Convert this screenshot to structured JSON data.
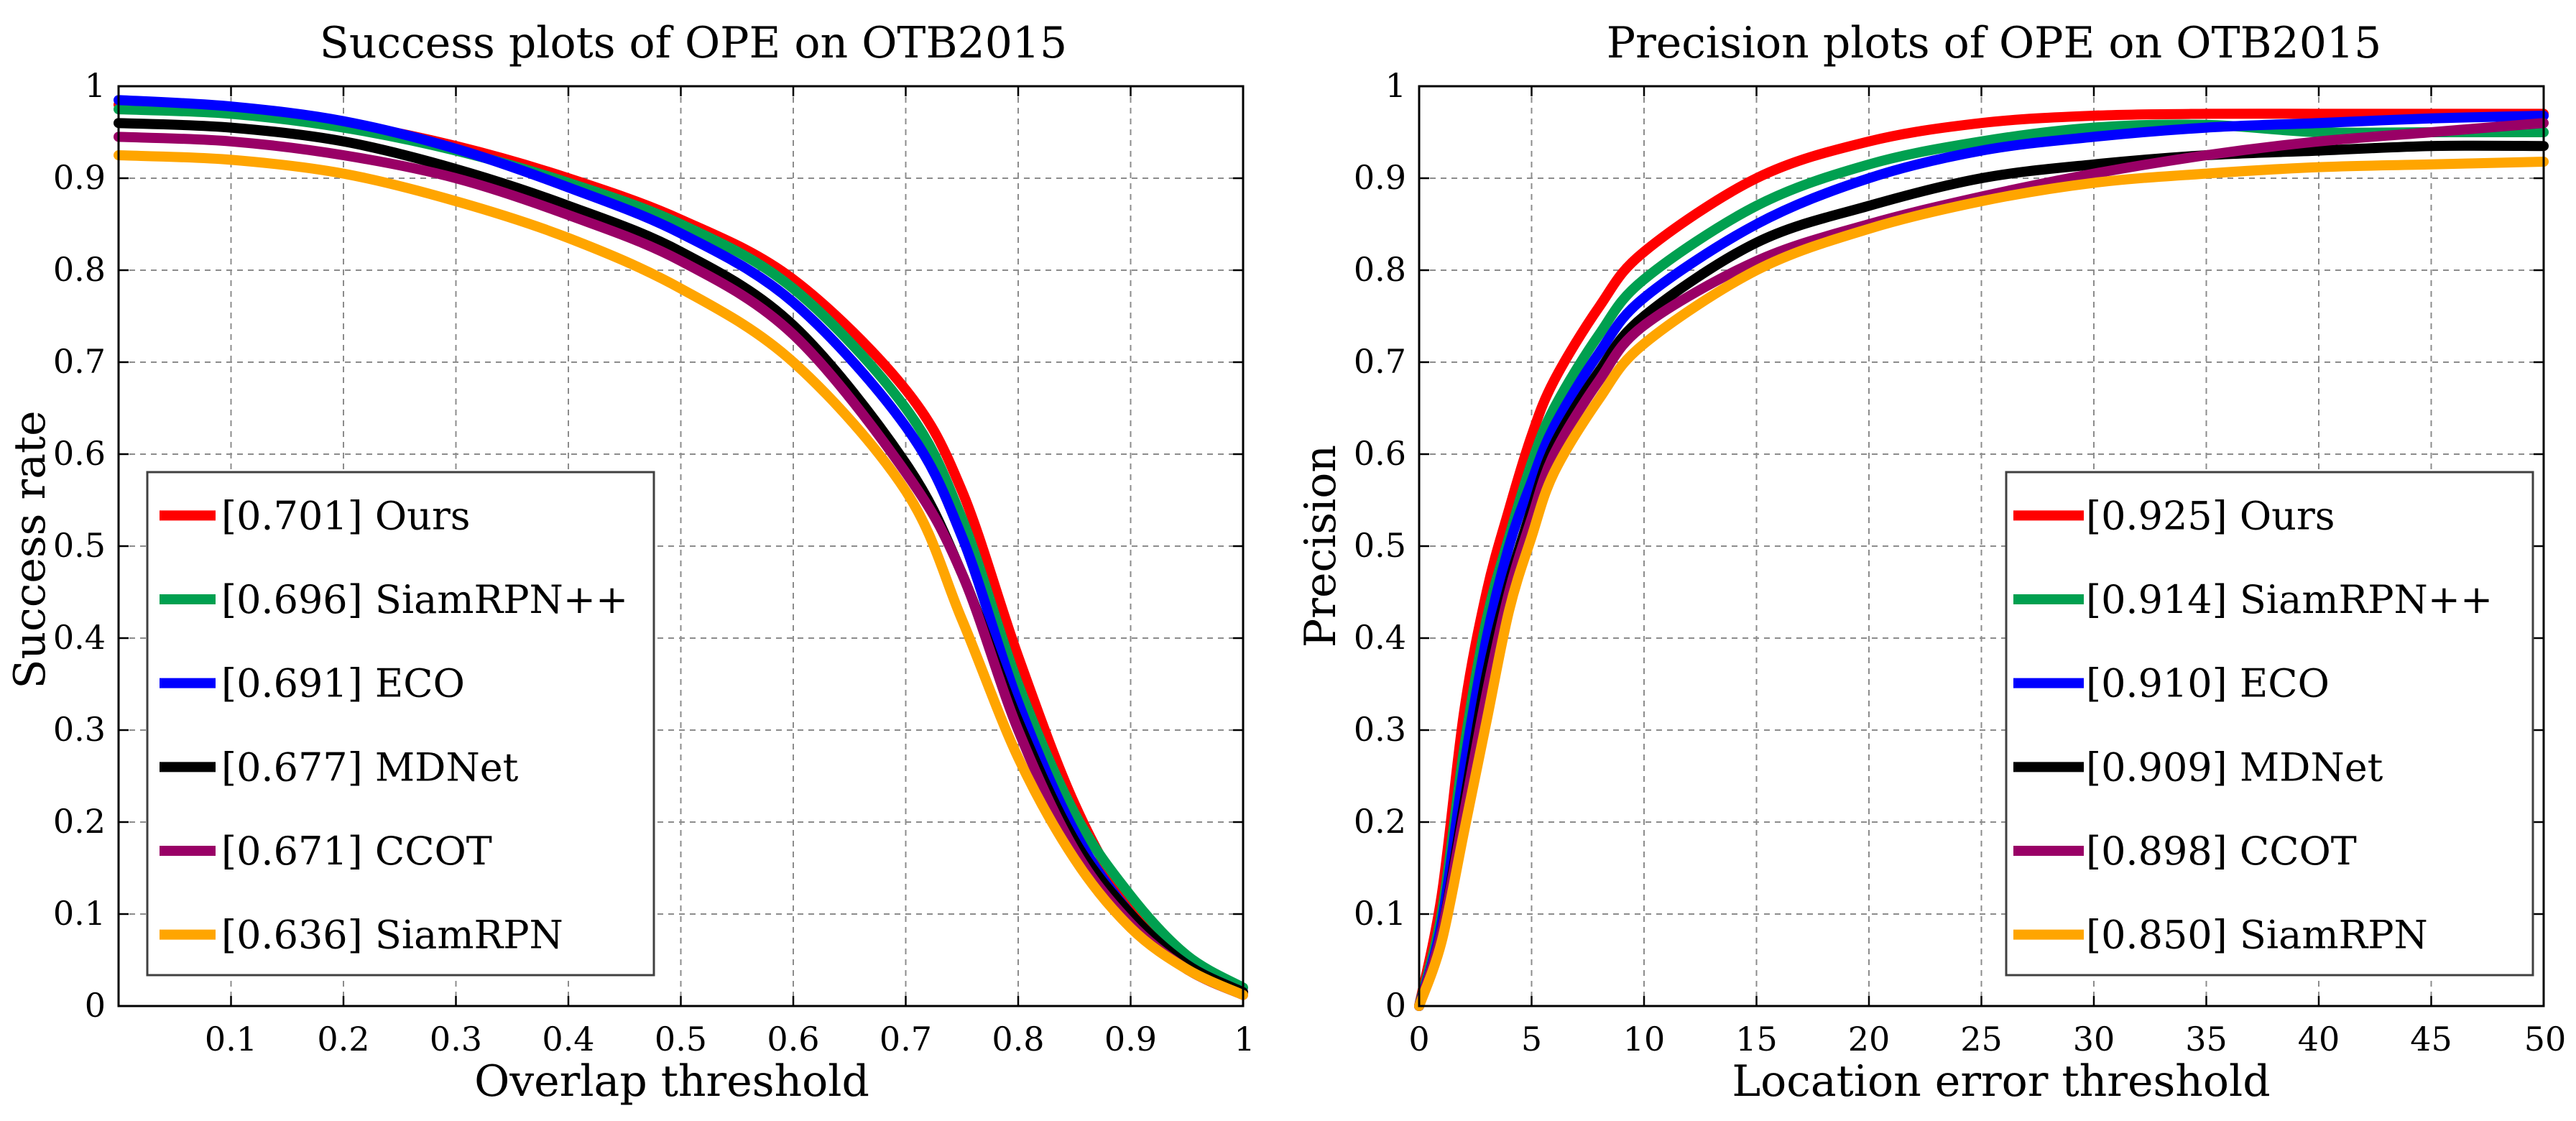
{
  "chart_data": [
    {
      "type": "line",
      "title": "Success plots of OPE on OTB2015",
      "xlabel": "Overlap threshold",
      "ylabel": "Success rate",
      "xlim": [
        0,
        1
      ],
      "ylim": [
        0,
        1
      ],
      "xticks": [
        "0.1",
        "0.2",
        "0.3",
        "0.4",
        "0.5",
        "0.6",
        "0.7",
        "0.8",
        "0.9",
        "1"
      ],
      "yticks": [
        "0",
        "0.1",
        "0.2",
        "0.3",
        "0.4",
        "0.5",
        "0.6",
        "0.7",
        "0.8",
        "0.9",
        "1"
      ],
      "grid": true,
      "legend_position": "bottom-left",
      "x": [
        0,
        0.1,
        0.2,
        0.3,
        0.4,
        0.5,
        0.6,
        0.7,
        0.75,
        0.8,
        0.85,
        0.9,
        0.95,
        1.0
      ],
      "series": [
        {
          "name": "Ours",
          "legend": "[0.701] Ours",
          "color": "#ff0000",
          "values": [
            0.98,
            0.975,
            0.96,
            0.935,
            0.9,
            0.855,
            0.79,
            0.67,
            0.56,
            0.38,
            0.22,
            0.11,
            0.05,
            0.015
          ]
        },
        {
          "name": "SiamRPN++",
          "legend": "[0.696] SiamRPN++",
          "color": "#00a050",
          "values": [
            0.975,
            0.97,
            0.955,
            0.93,
            0.895,
            0.85,
            0.78,
            0.65,
            0.53,
            0.35,
            0.21,
            0.12,
            0.055,
            0.02
          ]
        },
        {
          "name": "ECO",
          "legend": "[0.691] ECO",
          "color": "#0000ff",
          "values": [
            0.985,
            0.978,
            0.962,
            0.932,
            0.89,
            0.84,
            0.765,
            0.63,
            0.51,
            0.33,
            0.19,
            0.1,
            0.045,
            0.015
          ]
        },
        {
          "name": "MDNet",
          "legend": "[0.677] MDNet",
          "color": "#000000",
          "values": [
            0.96,
            0.955,
            0.94,
            0.91,
            0.87,
            0.82,
            0.74,
            0.59,
            0.47,
            0.31,
            0.18,
            0.1,
            0.045,
            0.015
          ]
        },
        {
          "name": "CCOT",
          "legend": "[0.671] CCOT",
          "color": "#990066",
          "values": [
            0.945,
            0.94,
            0.925,
            0.9,
            0.86,
            0.81,
            0.73,
            0.58,
            0.47,
            0.3,
            0.17,
            0.09,
            0.04,
            0.012
          ]
        },
        {
          "name": "SiamRPN",
          "legend": "[0.636] SiamRPN",
          "color": "#ffa500",
          "values": [
            0.925,
            0.92,
            0.905,
            0.875,
            0.835,
            0.78,
            0.7,
            0.56,
            0.42,
            0.27,
            0.16,
            0.085,
            0.04,
            0.012
          ]
        }
      ]
    },
    {
      "type": "line",
      "title": "Precision plots of OPE on OTB2015",
      "xlabel": "Location error threshold",
      "ylabel": "Precision",
      "xlim": [
        0,
        50
      ],
      "ylim": [
        0,
        1
      ],
      "xticks": [
        "0",
        "5",
        "10",
        "15",
        "20",
        "25",
        "30",
        "35",
        "40",
        "45",
        "50"
      ],
      "yticks": [
        "0",
        "0.1",
        "0.2",
        "0.3",
        "0.4",
        "0.5",
        "0.6",
        "0.7",
        "0.8",
        "0.9",
        "1"
      ],
      "grid": true,
      "legend_position": "bottom-right",
      "x": [
        0,
        1,
        2,
        3,
        4,
        5,
        6,
        8,
        10,
        15,
        20,
        25,
        30,
        35,
        40,
        45,
        50
      ],
      "series": [
        {
          "name": "Ours",
          "legend": "[0.925] Ours",
          "color": "#ff0000",
          "values": [
            0,
            0.12,
            0.32,
            0.45,
            0.54,
            0.62,
            0.68,
            0.76,
            0.82,
            0.9,
            0.94,
            0.96,
            0.968,
            0.97,
            0.97,
            0.97,
            0.97
          ]
        },
        {
          "name": "SiamRPN++",
          "legend": "[0.914] SiamRPN++",
          "color": "#00a050",
          "values": [
            0,
            0.1,
            0.28,
            0.42,
            0.51,
            0.59,
            0.65,
            0.73,
            0.79,
            0.87,
            0.915,
            0.94,
            0.955,
            0.958,
            0.95,
            0.95,
            0.95
          ]
        },
        {
          "name": "ECO",
          "legend": "[0.910] ECO",
          "color": "#0000ff",
          "values": [
            0,
            0.09,
            0.26,
            0.4,
            0.5,
            0.57,
            0.63,
            0.71,
            0.77,
            0.85,
            0.9,
            0.93,
            0.945,
            0.955,
            0.96,
            0.965,
            0.968
          ]
        },
        {
          "name": "MDNet",
          "legend": "[0.909] MDNet",
          "color": "#000000",
          "values": [
            0,
            0.08,
            0.22,
            0.36,
            0.46,
            0.54,
            0.61,
            0.69,
            0.75,
            0.83,
            0.87,
            0.9,
            0.915,
            0.925,
            0.93,
            0.935,
            0.935
          ]
        },
        {
          "name": "CCOT",
          "legend": "[0.898] CCOT",
          "color": "#990066",
          "values": [
            0,
            0.08,
            0.21,
            0.34,
            0.45,
            0.53,
            0.6,
            0.68,
            0.74,
            0.81,
            0.85,
            0.88,
            0.905,
            0.925,
            0.94,
            0.95,
            0.96
          ]
        },
        {
          "name": "SiamRPN",
          "legend": "[0.850] SiamRPN",
          "color": "#ffa500",
          "values": [
            0,
            0.07,
            0.19,
            0.31,
            0.43,
            0.51,
            0.58,
            0.66,
            0.72,
            0.8,
            0.845,
            0.875,
            0.895,
            0.905,
            0.912,
            0.915,
            0.918
          ]
        }
      ]
    }
  ]
}
